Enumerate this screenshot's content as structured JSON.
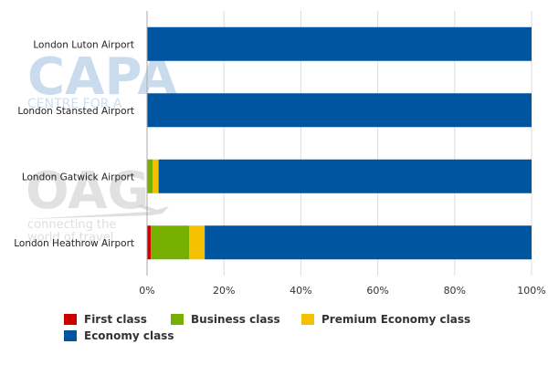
{
  "chart_data": {
    "type": "bar",
    "orientation": "horizontal",
    "stacked": "percent",
    "categories": [
      "London Luton Airport",
      "London Stansted Airport",
      "London Gatwick Airport",
      "London Heathrow Airport"
    ],
    "series": [
      {
        "name": "First class",
        "color": "#cc0000",
        "values": [
          0,
          0,
          0,
          1
        ]
      },
      {
        "name": "Business class",
        "color": "#77b000",
        "values": [
          0,
          0,
          1.5,
          10
        ]
      },
      {
        "name": "Premium Economy class",
        "color": "#f5c000",
        "values": [
          0,
          0,
          1.5,
          4
        ]
      },
      {
        "name": "Economy class",
        "color": "#0055a0",
        "values": [
          100,
          100,
          97,
          85
        ]
      }
    ],
    "xlim": [
      0,
      100
    ],
    "xticks": [
      "0%",
      "20%",
      "40%",
      "60%",
      "80%",
      "100%"
    ],
    "grid": "vertical",
    "legend_position": "bottom"
  },
  "watermarks": {
    "capa_logo": "CAPA",
    "capa_sub": "CENTRE FOR A",
    "oag_logo": "OAG",
    "oag_tagline": [
      "connecting the",
      "world of travel"
    ]
  }
}
